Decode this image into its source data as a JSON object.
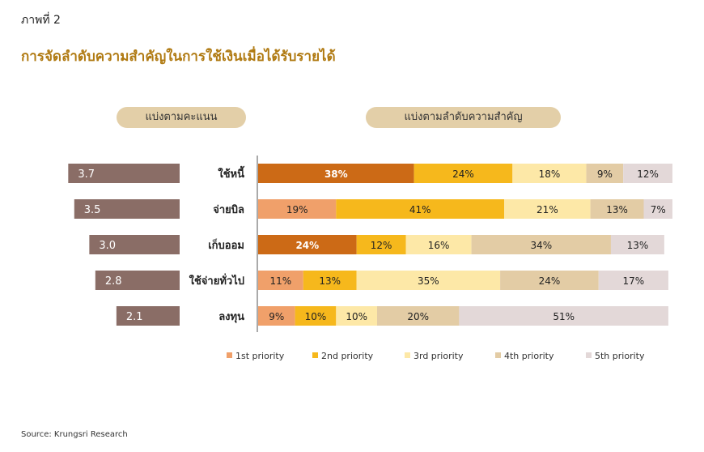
{
  "figure_label": "ภาพที่ 2",
  "title": "การจัดลำดับความสำคัญในการใช้เงินเมื่อได้รับรายได้",
  "left_panel_label": "แบ่งตามคะแนน",
  "right_panel_label": "แบ่งตามลำดับความสำคัญ",
  "source": "Source: Krungsri Research",
  "colors": {
    "score_bar": "#8a6d66",
    "priority_1": "#f0a06a",
    "priority_1_top": "#cc6a16",
    "priority_2": "#f6b81c",
    "priority_3": "#fde8a7",
    "priority_4": "#e3cca5",
    "priority_5": "#e3d8d8"
  },
  "chart_data": [
    {
      "type": "bar",
      "orientation": "horizontal",
      "categories": [
        "ใช้หนี้",
        "จ่ายบิล",
        "เก็บออม",
        "ใช้จ่ายทั่วไป",
        "ลงทุน"
      ],
      "values": [
        3.7,
        3.5,
        3.0,
        2.8,
        2.1
      ],
      "value_labels": [
        "3.7",
        "3.5",
        "3.0",
        "2.8",
        "2.1"
      ],
      "xlim": [
        0,
        4.3
      ]
    },
    {
      "type": "bar",
      "orientation": "horizontal",
      "stacked": true,
      "categories": [
        "ใช้หนี้",
        "จ่ายบิล",
        "เก็บออม",
        "ใช้จ่ายทั่วไป",
        "ลงทุน"
      ],
      "series": [
        {
          "name": "1st priority",
          "values": [
            38,
            19,
            24,
            11,
            9
          ],
          "labels": [
            "38%",
            "19%",
            "24%",
            "11%",
            "9%"
          ]
        },
        {
          "name": "2nd priority",
          "values": [
            24,
            41,
            12,
            13,
            10
          ],
          "labels": [
            "24%",
            "41%",
            "12%",
            "13%",
            "10%"
          ]
        },
        {
          "name": "3rd priority",
          "values": [
            18,
            21,
            16,
            35,
            10
          ],
          "labels": [
            "18%",
            "21%",
            "16%",
            "35%",
            "10%"
          ]
        },
        {
          "name": "4th priority",
          "values": [
            9,
            13,
            34,
            24,
            20
          ],
          "labels": [
            "9%",
            "13%",
            "34%",
            "24%",
            "20%"
          ]
        },
        {
          "name": "5th priority",
          "values": [
            12,
            7,
            13,
            17,
            51
          ],
          "labels": [
            "12%",
            "7%",
            "13%",
            "17%",
            "51%"
          ]
        }
      ],
      "xlim": [
        0,
        101
      ],
      "legend_position": "bottom"
    }
  ]
}
